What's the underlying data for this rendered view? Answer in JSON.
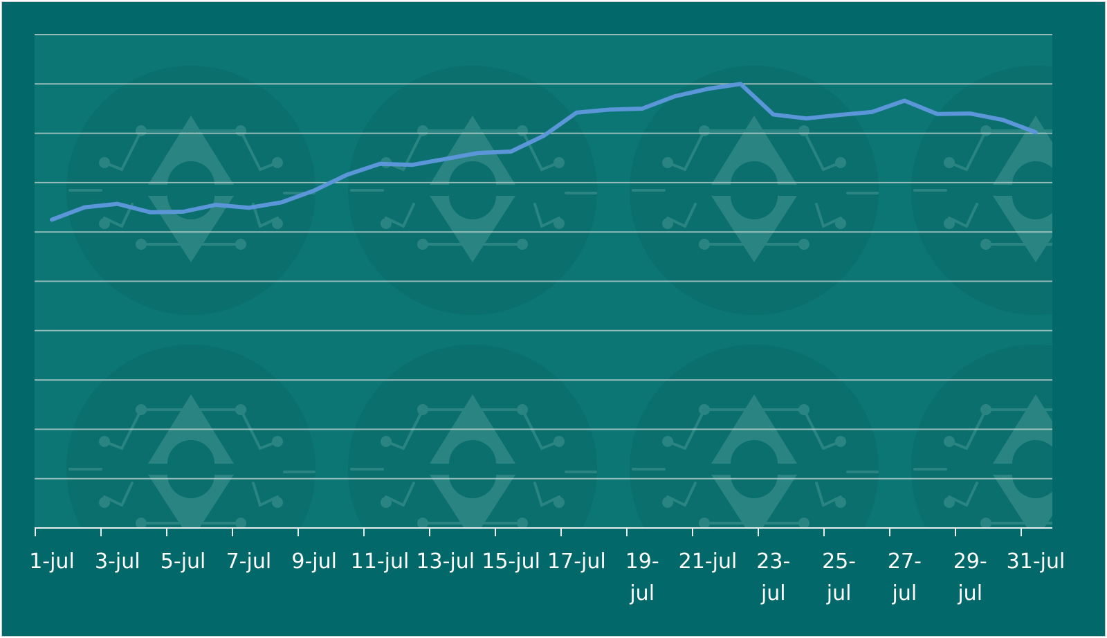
{
  "colors": {
    "background": "#03686a",
    "plot_background": "#0b7674",
    "gridline": "#b9cfce",
    "axis": "#e8efef",
    "line": "#5b96d9",
    "watermark": "#2a8582",
    "watermark_disc": "#0a6f6d"
  },
  "chart_data": {
    "type": "line",
    "title": "",
    "xlabel": "",
    "ylabel": "",
    "grid": true,
    "ylim": [
      0,
      10
    ],
    "y_ticks_printed": false,
    "x_tick_labels": [
      [
        "1-jul"
      ],
      [
        "3-jul"
      ],
      [
        "5-jul"
      ],
      [
        "7-jul"
      ],
      [
        "9-jul"
      ],
      [
        "11-jul"
      ],
      [
        "13-jul"
      ],
      [
        "15-jul"
      ],
      [
        "17-jul"
      ],
      [
        "19-",
        "jul"
      ],
      [
        "21-jul"
      ],
      [
        "23-",
        "jul"
      ],
      [
        "25-",
        "jul"
      ],
      [
        "27-",
        "jul"
      ],
      [
        "29-",
        "jul"
      ],
      [
        "31-jul"
      ]
    ],
    "x": [
      "1-jul",
      "2-jul",
      "3-jul",
      "4-jul",
      "5-jul",
      "6-jul",
      "7-jul",
      "8-jul",
      "9-jul",
      "10-jul",
      "11-jul",
      "12-jul",
      "13-jul",
      "14-jul",
      "15-jul",
      "16-jul",
      "17-jul",
      "18-jul",
      "19-jul",
      "20-jul",
      "21-jul",
      "22-jul",
      "23-jul",
      "24-jul",
      "25-jul",
      "26-jul",
      "27-jul",
      "28-jul",
      "29-jul",
      "30-jul",
      "31-jul"
    ],
    "series": [
      {
        "values": [
          6.25,
          6.5,
          6.57,
          6.4,
          6.41,
          6.55,
          6.49,
          6.6,
          6.84,
          7.16,
          7.38,
          7.36,
          7.48,
          7.6,
          7.63,
          7.95,
          8.42,
          8.48,
          8.5,
          8.75,
          8.9,
          9.0,
          8.38,
          8.3,
          8.37,
          8.43,
          8.66,
          8.39,
          8.4,
          8.27,
          8.02
        ]
      }
    ]
  }
}
